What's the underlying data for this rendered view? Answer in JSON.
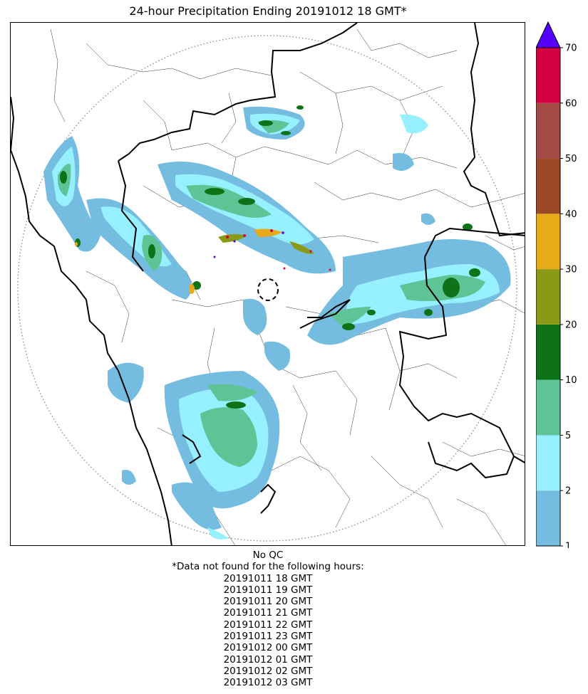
{
  "title": "24-hour Precipitation Ending 20191012 18 GMT*",
  "qc_note": "No QC",
  "missing_note": "*Data not found for the following hours:",
  "missing_hours": [
    "20191011 18 GMT",
    "20191011 19 GMT",
    "20191011 20 GMT",
    "20191011 21 GMT",
    "20191011 22 GMT",
    "20191011 23 GMT",
    "20191012 00 GMT",
    "20191012 01 GMT",
    "20191012 02 GMT",
    "20191012 03 GMT"
  ],
  "colorbar": {
    "levels": [
      "1",
      "2",
      "5",
      "10",
      "20",
      "30",
      "40",
      "50",
      "60",
      "70"
    ],
    "colors": [
      "#74bde0",
      "#96f0ff",
      "#5ec496",
      "#0e7318",
      "#8b9a16",
      "#e8aa18",
      "#9c4a25",
      "#a24a43",
      "#d40044"
    ],
    "extend_color": "#5500ff"
  },
  "map": {
    "precip_colors": {
      "light": "#74bde0",
      "cyan": "#96f0ff",
      "seagreen": "#5ec496",
      "darkgreen": "#0e7318",
      "olive": "#8b9a16",
      "orange": "#e8aa18",
      "red": "#d40044",
      "purple": "#5500ff"
    },
    "coast_color": "#000000",
    "range_ring_color": "#888888"
  }
}
